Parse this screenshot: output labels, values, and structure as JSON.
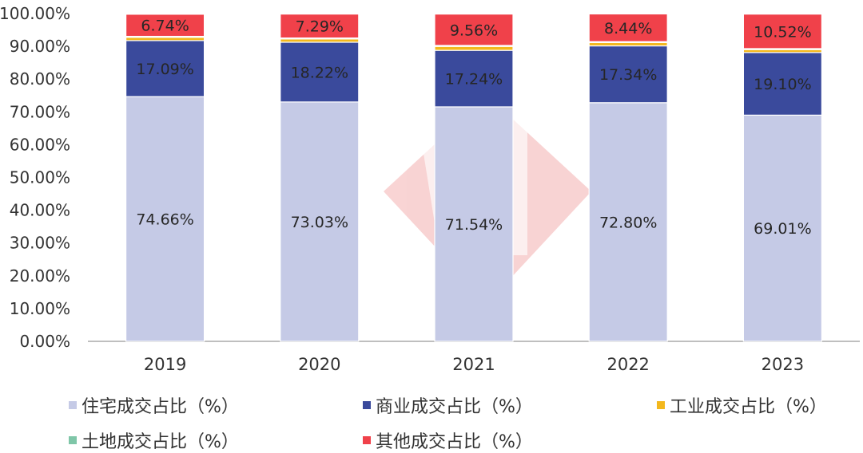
{
  "chart_data": {
    "type": "bar",
    "stacked": true,
    "categories": [
      "2019",
      "2020",
      "2021",
      "2022",
      "2023"
    ],
    "ylim": [
      0,
      100
    ],
    "ytick_labels": [
      "0.00%",
      "10.00%",
      "20.00%",
      "30.00%",
      "40.00%",
      "50.00%",
      "60.00%",
      "70.00%",
      "80.00%",
      "90.00%",
      "100.00%"
    ],
    "grid": false,
    "legend_position": "bottom",
    "series": [
      {
        "name": "住宅成交占比（%）",
        "color": "#c5cae6",
        "values": [
          74.66,
          73.03,
          71.54,
          72.8,
          69.01
        ],
        "labels": [
          "74.66%",
          "73.03%",
          "71.54%",
          "72.80%",
          "69.01%"
        ]
      },
      {
        "name": "商业成交占比（%）",
        "color": "#3a4a9c",
        "values": [
          17.09,
          18.22,
          17.24,
          17.34,
          19.1
        ],
        "labels": [
          "17.09%",
          "18.22%",
          "17.24%",
          "17.34%",
          "19.10%"
        ]
      },
      {
        "name": "工业成交占比（%）",
        "color": "#f3b81d",
        "values": [
          1.0,
          1.0,
          1.2,
          1.0,
          0.9
        ],
        "labels": [
          "",
          "",
          "",
          "",
          ""
        ]
      },
      {
        "name": "土地成交占比（%）",
        "color": "#7fc6a8",
        "values": [
          0.3,
          0.3,
          0.3,
          0.3,
          0.3
        ],
        "labels": [
          "",
          "",
          "",
          "",
          ""
        ]
      },
      {
        "name": "其他成交占比（%）",
        "color": "#f0414a",
        "values": [
          6.74,
          7.29,
          9.56,
          8.44,
          10.52
        ],
        "labels": [
          "6.74%",
          "7.29%",
          "9.56%",
          "8.44%",
          "10.52%"
        ]
      }
    ]
  }
}
